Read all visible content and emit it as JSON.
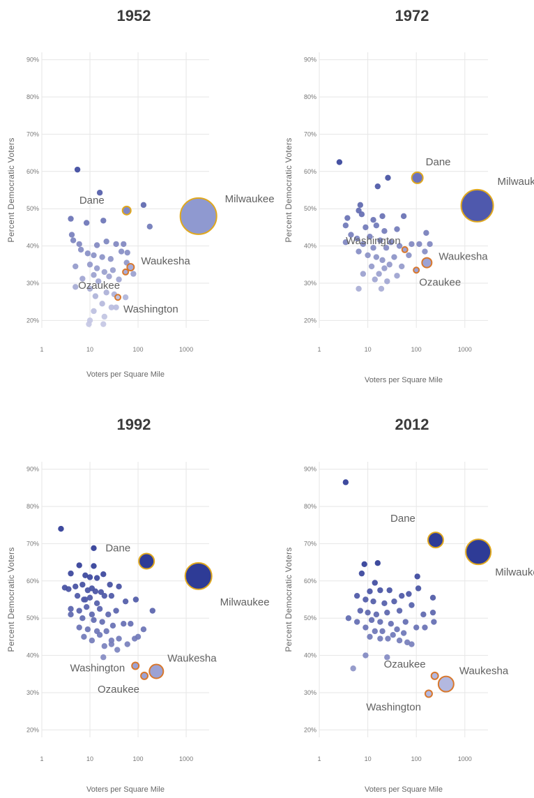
{
  "chart_data": [
    {
      "type": "scatter",
      "title": "1952",
      "xlabel": "Voters per Square Mile",
      "ylabel": "Percent Democratic Voters",
      "xscale": "log",
      "xlim": [
        1,
        3000
      ],
      "ylim": [
        0.18,
        0.92
      ],
      "xticks": [
        "1",
        "10",
        "100",
        "1000"
      ],
      "yticks": [
        "20%",
        "30%",
        "40%",
        "50%",
        "60%",
        "70%",
        "80%",
        "90%"
      ],
      "grid": true,
      "labeled_points": [
        {
          "name": "Milwaukee",
          "x": 1800,
          "y": 0.48,
          "size": 26,
          "fill": "#8f99d0",
          "stroke": "#e0a81e"
        },
        {
          "name": "Dane",
          "x": 58,
          "y": 0.495,
          "size": 6,
          "fill": "#7f86c5",
          "stroke": "#e0a81e"
        },
        {
          "name": "Waukesha",
          "x": 70,
          "y": 0.343,
          "size": 5,
          "fill": "#a7acd9",
          "stroke": "#d8782d"
        },
        {
          "name": "Ozaukee",
          "x": 55,
          "y": 0.33,
          "size": 4,
          "fill": "#a7acd9",
          "stroke": "#d8782d"
        },
        {
          "name": "Washington",
          "x": 38,
          "y": 0.262,
          "size": 4,
          "fill": "#c0c3e2",
          "stroke": "#d8782d"
        }
      ],
      "points": [
        {
          "x": 5.5,
          "y": 0.605
        },
        {
          "x": 16,
          "y": 0.543
        },
        {
          "x": 130,
          "y": 0.51
        },
        {
          "x": 175,
          "y": 0.452
        },
        {
          "x": 4,
          "y": 0.473
        },
        {
          "x": 8.5,
          "y": 0.462
        },
        {
          "x": 19,
          "y": 0.468
        },
        {
          "x": 4.2,
          "y": 0.43
        },
        {
          "x": 4.5,
          "y": 0.415
        },
        {
          "x": 6,
          "y": 0.405
        },
        {
          "x": 14,
          "y": 0.402
        },
        {
          "x": 22,
          "y": 0.412
        },
        {
          "x": 35,
          "y": 0.405
        },
        {
          "x": 50,
          "y": 0.405
        },
        {
          "x": 6.5,
          "y": 0.39
        },
        {
          "x": 9,
          "y": 0.38
        },
        {
          "x": 12,
          "y": 0.375
        },
        {
          "x": 18,
          "y": 0.37
        },
        {
          "x": 27,
          "y": 0.365
        },
        {
          "x": 45,
          "y": 0.385
        },
        {
          "x": 60,
          "y": 0.382
        },
        {
          "x": 5,
          "y": 0.345
        },
        {
          "x": 10,
          "y": 0.35
        },
        {
          "x": 14,
          "y": 0.34
        },
        {
          "x": 20,
          "y": 0.33
        },
        {
          "x": 30,
          "y": 0.335
        },
        {
          "x": 58,
          "y": 0.355
        },
        {
          "x": 80,
          "y": 0.325
        },
        {
          "x": 12,
          "y": 0.322
        },
        {
          "x": 25,
          "y": 0.318
        },
        {
          "x": 7,
          "y": 0.312
        },
        {
          "x": 15,
          "y": 0.305
        },
        {
          "x": 40,
          "y": 0.31
        },
        {
          "x": 5,
          "y": 0.29
        },
        {
          "x": 10,
          "y": 0.285
        },
        {
          "x": 13,
          "y": 0.265
        },
        {
          "x": 22,
          "y": 0.275
        },
        {
          "x": 32,
          "y": 0.27
        },
        {
          "x": 55,
          "y": 0.262
        },
        {
          "x": 18,
          "y": 0.245
        },
        {
          "x": 28,
          "y": 0.235
        },
        {
          "x": 12,
          "y": 0.225
        },
        {
          "x": 20,
          "y": 0.21
        },
        {
          "x": 10,
          "y": 0.2
        },
        {
          "x": 9.5,
          "y": 0.19
        },
        {
          "x": 19,
          "y": 0.19
        },
        {
          "x": 35,
          "y": 0.235
        }
      ]
    },
    {
      "type": "scatter",
      "title": "1972",
      "xlabel": "Voters per Square Mile",
      "ylabel": "Percent Democratic Voters",
      "xscale": "log",
      "xlim": [
        1,
        3000
      ],
      "ylim": [
        0.18,
        0.92
      ],
      "xticks": [
        "1",
        "10",
        "100",
        "1000"
      ],
      "yticks": [
        "20%",
        "30%",
        "40%",
        "50%",
        "60%",
        "70%",
        "80%",
        "90%"
      ],
      "grid": true,
      "labeled_points": [
        {
          "name": "Milwaukee",
          "x": 1800,
          "y": 0.508,
          "size": 23,
          "fill": "#4f59ad",
          "stroke": "#e0a81e"
        },
        {
          "name": "Dane",
          "x": 105,
          "y": 0.583,
          "size": 8,
          "fill": "#6b72bd",
          "stroke": "#e0a81e"
        },
        {
          "name": "Waukesha",
          "x": 165,
          "y": 0.355,
          "size": 7,
          "fill": "#9ca2d4",
          "stroke": "#d8782d"
        },
        {
          "name": "Washington",
          "x": 58,
          "y": 0.39,
          "size": 4,
          "fill": "#9ca2d4",
          "stroke": "#d8782d"
        },
        {
          "name": "Ozaukee",
          "x": 100,
          "y": 0.335,
          "size": 4,
          "fill": "#9ca2d4",
          "stroke": "#d8782d"
        }
      ],
      "points": [
        {
          "x": 2.6,
          "y": 0.625
        },
        {
          "x": 16,
          "y": 0.56
        },
        {
          "x": 26,
          "y": 0.583
        },
        {
          "x": 7,
          "y": 0.51
        },
        {
          "x": 6.5,
          "y": 0.495
        },
        {
          "x": 3.8,
          "y": 0.475
        },
        {
          "x": 7.5,
          "y": 0.485
        },
        {
          "x": 13,
          "y": 0.47
        },
        {
          "x": 20,
          "y": 0.48
        },
        {
          "x": 55,
          "y": 0.48
        },
        {
          "x": 3.5,
          "y": 0.455
        },
        {
          "x": 9,
          "y": 0.45
        },
        {
          "x": 15,
          "y": 0.455
        },
        {
          "x": 22,
          "y": 0.44
        },
        {
          "x": 40,
          "y": 0.445
        },
        {
          "x": 4.5,
          "y": 0.43
        },
        {
          "x": 6,
          "y": 0.42
        },
        {
          "x": 11,
          "y": 0.425
        },
        {
          "x": 18,
          "y": 0.415
        },
        {
          "x": 30,
          "y": 0.41
        },
        {
          "x": 160,
          "y": 0.435
        },
        {
          "x": 3.5,
          "y": 0.41
        },
        {
          "x": 8,
          "y": 0.405
        },
        {
          "x": 13,
          "y": 0.395
        },
        {
          "x": 24,
          "y": 0.395
        },
        {
          "x": 45,
          "y": 0.4
        },
        {
          "x": 80,
          "y": 0.405
        },
        {
          "x": 115,
          "y": 0.405
        },
        {
          "x": 190,
          "y": 0.405
        },
        {
          "x": 6.5,
          "y": 0.385
        },
        {
          "x": 10,
          "y": 0.375
        },
        {
          "x": 15,
          "y": 0.37
        },
        {
          "x": 20,
          "y": 0.362
        },
        {
          "x": 35,
          "y": 0.37
        },
        {
          "x": 70,
          "y": 0.375
        },
        {
          "x": 150,
          "y": 0.385
        },
        {
          "x": 12,
          "y": 0.345
        },
        {
          "x": 22,
          "y": 0.34
        },
        {
          "x": 28,
          "y": 0.35
        },
        {
          "x": 50,
          "y": 0.345
        },
        {
          "x": 8,
          "y": 0.325
        },
        {
          "x": 14,
          "y": 0.31
        },
        {
          "x": 25,
          "y": 0.305
        },
        {
          "x": 6.5,
          "y": 0.285
        },
        {
          "x": 19,
          "y": 0.285
        },
        {
          "x": 17,
          "y": 0.325
        },
        {
          "x": 40,
          "y": 0.32
        }
      ]
    },
    {
      "type": "scatter",
      "title": "1992",
      "xlabel": "Voters per Square Mile",
      "ylabel": "Percent Democratic Voters",
      "xscale": "log",
      "xlim": [
        1,
        3000
      ],
      "ylim": [
        0.18,
        0.92
      ],
      "xticks": [
        "1",
        "10",
        "100",
        "1000"
      ],
      "yticks": [
        "20%",
        "30%",
        "40%",
        "50%",
        "60%",
        "70%",
        "80%",
        "90%"
      ],
      "grid": true,
      "labeled_points": [
        {
          "name": "Milwaukee",
          "x": 1800,
          "y": 0.613,
          "size": 19,
          "fill": "#2e3b96",
          "stroke": "#e0a81e"
        },
        {
          "name": "Dane",
          "x": 150,
          "y": 0.653,
          "size": 11,
          "fill": "#2e3b96",
          "stroke": "#e0a81e"
        },
        {
          "name": "Waukesha",
          "x": 240,
          "y": 0.357,
          "size": 10,
          "fill": "#9ca2d4",
          "stroke": "#d8782d"
        },
        {
          "name": "Washington",
          "x": 88,
          "y": 0.372,
          "size": 5,
          "fill": "#9ca2d4",
          "stroke": "#d8782d"
        },
        {
          "name": "Ozaukee",
          "x": 135,
          "y": 0.345,
          "size": 5,
          "fill": "#9ca2d4",
          "stroke": "#d8782d"
        }
      ],
      "points": [
        {
          "x": 2.5,
          "y": 0.74
        },
        {
          "x": 12,
          "y": 0.688
        },
        {
          "x": 6,
          "y": 0.642
        },
        {
          "x": 12,
          "y": 0.64
        },
        {
          "x": 4,
          "y": 0.62
        },
        {
          "x": 8,
          "y": 0.615
        },
        {
          "x": 10,
          "y": 0.61
        },
        {
          "x": 14,
          "y": 0.608
        },
        {
          "x": 19,
          "y": 0.618
        },
        {
          "x": 3,
          "y": 0.582
        },
        {
          "x": 3.6,
          "y": 0.578
        },
        {
          "x": 5,
          "y": 0.585
        },
        {
          "x": 7,
          "y": 0.59
        },
        {
          "x": 9,
          "y": 0.575
        },
        {
          "x": 11,
          "y": 0.58
        },
        {
          "x": 13,
          "y": 0.572
        },
        {
          "x": 17,
          "y": 0.57
        },
        {
          "x": 26,
          "y": 0.59
        },
        {
          "x": 40,
          "y": 0.585
        },
        {
          "x": 5.5,
          "y": 0.56
        },
        {
          "x": 7.5,
          "y": 0.55
        },
        {
          "x": 10,
          "y": 0.555
        },
        {
          "x": 14,
          "y": 0.54
        },
        {
          "x": 20,
          "y": 0.56
        },
        {
          "x": 28,
          "y": 0.56
        },
        {
          "x": 55,
          "y": 0.545
        },
        {
          "x": 90,
          "y": 0.55
        },
        {
          "x": 4,
          "y": 0.525
        },
        {
          "x": 6,
          "y": 0.52
        },
        {
          "x": 8.5,
          "y": 0.53
        },
        {
          "x": 11,
          "y": 0.51
        },
        {
          "x": 16,
          "y": 0.525
        },
        {
          "x": 24,
          "y": 0.51
        },
        {
          "x": 35,
          "y": 0.52
        },
        {
          "x": 200,
          "y": 0.52
        },
        {
          "x": 4,
          "y": 0.51
        },
        {
          "x": 7,
          "y": 0.5
        },
        {
          "x": 12,
          "y": 0.495
        },
        {
          "x": 18,
          "y": 0.49
        },
        {
          "x": 30,
          "y": 0.48
        },
        {
          "x": 50,
          "y": 0.485
        },
        {
          "x": 70,
          "y": 0.485
        },
        {
          "x": 6,
          "y": 0.475
        },
        {
          "x": 9,
          "y": 0.47
        },
        {
          "x": 14,
          "y": 0.465
        },
        {
          "x": 22,
          "y": 0.465
        },
        {
          "x": 130,
          "y": 0.47
        },
        {
          "x": 7.5,
          "y": 0.45
        },
        {
          "x": 11,
          "y": 0.44
        },
        {
          "x": 16,
          "y": 0.455
        },
        {
          "x": 28,
          "y": 0.44
        },
        {
          "x": 40,
          "y": 0.445
        },
        {
          "x": 85,
          "y": 0.445
        },
        {
          "x": 100,
          "y": 0.45
        },
        {
          "x": 20,
          "y": 0.425
        },
        {
          "x": 28,
          "y": 0.43
        },
        {
          "x": 60,
          "y": 0.43
        },
        {
          "x": 37,
          "y": 0.415
        },
        {
          "x": 19,
          "y": 0.395
        },
        {
          "x": 8,
          "y": 0.55
        }
      ]
    },
    {
      "type": "scatter",
      "title": "2012",
      "xlabel": "Voters per Square Mile",
      "ylabel": "Percent Democratic Voters",
      "xscale": "log",
      "xlim": [
        1,
        3000
      ],
      "ylim": [
        0.18,
        0.92
      ],
      "xticks": [
        "1",
        "10",
        "100",
        "1000"
      ],
      "yticks": [
        "20%",
        "30%",
        "40%",
        "50%",
        "60%",
        "70%",
        "80%",
        "90%"
      ],
      "grid": true,
      "labeled_points": [
        {
          "name": "Milwaukee",
          "x": 1900,
          "y": 0.678,
          "size": 18,
          "fill": "#2e3b96",
          "stroke": "#e0a81e"
        },
        {
          "name": "Dane",
          "x": 250,
          "y": 0.71,
          "size": 11,
          "fill": "#2e3b96",
          "stroke": "#e0a81e"
        },
        {
          "name": "Waukesha",
          "x": 410,
          "y": 0.323,
          "size": 11,
          "fill": "#b3b8e0",
          "stroke": "#d8782d"
        },
        {
          "name": "Ozaukee",
          "x": 240,
          "y": 0.345,
          "size": 5,
          "fill": "#b3b8e0",
          "stroke": "#d8782d"
        },
        {
          "name": "Washington",
          "x": 180,
          "y": 0.297,
          "size": 5,
          "fill": "#b3b8e0",
          "stroke": "#d8782d"
        }
      ],
      "points": [
        {
          "x": 3.5,
          "y": 0.865
        },
        {
          "x": 8.5,
          "y": 0.645
        },
        {
          "x": 16,
          "y": 0.648
        },
        {
          "x": 7.5,
          "y": 0.62
        },
        {
          "x": 105,
          "y": 0.612
        },
        {
          "x": 14,
          "y": 0.595
        },
        {
          "x": 110,
          "y": 0.58
        },
        {
          "x": 11,
          "y": 0.572
        },
        {
          "x": 18,
          "y": 0.575
        },
        {
          "x": 28,
          "y": 0.575
        },
        {
          "x": 50,
          "y": 0.56
        },
        {
          "x": 70,
          "y": 0.565
        },
        {
          "x": 220,
          "y": 0.555
        },
        {
          "x": 6,
          "y": 0.56
        },
        {
          "x": 9,
          "y": 0.55
        },
        {
          "x": 13,
          "y": 0.545
        },
        {
          "x": 22,
          "y": 0.54
        },
        {
          "x": 35,
          "y": 0.545
        },
        {
          "x": 80,
          "y": 0.535
        },
        {
          "x": 7,
          "y": 0.52
        },
        {
          "x": 10,
          "y": 0.515
        },
        {
          "x": 15,
          "y": 0.51
        },
        {
          "x": 25,
          "y": 0.515
        },
        {
          "x": 45,
          "y": 0.52
        },
        {
          "x": 140,
          "y": 0.51
        },
        {
          "x": 220,
          "y": 0.515
        },
        {
          "x": 4,
          "y": 0.5
        },
        {
          "x": 6,
          "y": 0.49
        },
        {
          "x": 12,
          "y": 0.495
        },
        {
          "x": 18,
          "y": 0.49
        },
        {
          "x": 30,
          "y": 0.485
        },
        {
          "x": 60,
          "y": 0.49
        },
        {
          "x": 9,
          "y": 0.475
        },
        {
          "x": 14,
          "y": 0.465
        },
        {
          "x": 20,
          "y": 0.465
        },
        {
          "x": 40,
          "y": 0.47
        },
        {
          "x": 55,
          "y": 0.46
        },
        {
          "x": 100,
          "y": 0.475
        },
        {
          "x": 11,
          "y": 0.45
        },
        {
          "x": 18,
          "y": 0.445
        },
        {
          "x": 26,
          "y": 0.445
        },
        {
          "x": 45,
          "y": 0.44
        },
        {
          "x": 65,
          "y": 0.435
        },
        {
          "x": 80,
          "y": 0.43
        },
        {
          "x": 150,
          "y": 0.475
        },
        {
          "x": 25,
          "y": 0.395
        },
        {
          "x": 5,
          "y": 0.365
        },
        {
          "x": 9,
          "y": 0.4
        },
        {
          "x": 33,
          "y": 0.455
        },
        {
          "x": 230,
          "y": 0.49
        }
      ]
    }
  ],
  "colors": {
    "dark": "#2e3b96",
    "mid": "#6b72bd",
    "light": "#c0c3e2",
    "dane_milwaukee_outline": "#e0a81e",
    "suburb_outline": "#d8782d",
    "grid": "#e6e6e6"
  }
}
